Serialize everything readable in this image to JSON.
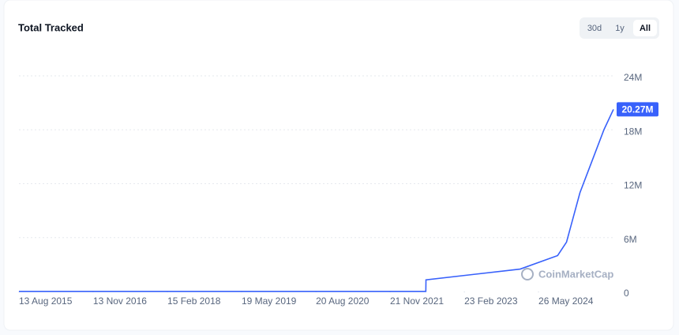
{
  "chart_data": {
    "type": "line",
    "title": "Total Tracked",
    "range_buttons": [
      "30d",
      "1y",
      "All"
    ],
    "active_button": 2,
    "watermark": "CoinMarketCap",
    "x": [
      "13 Aug 2015",
      "30 Jun 2022",
      "1 Jul 2022",
      "18 Apr 2023",
      "3 Feb 2024",
      "21 Sep 2024",
      "15 Nov 2024",
      "6 Feb 2025",
      "21 Apr 2025",
      "4 Jul 2025",
      "1 Sep 2025"
    ],
    "series": [
      {
        "name": "Total Tracked",
        "color": "#3861fb",
        "values": [
          0.02,
          0.02,
          1.3,
          1.9,
          2.5,
          4.0,
          5.5,
          11,
          14.5,
          18,
          20.27
        ],
        "value_labels": [
          null,
          null,
          null,
          null,
          null,
          null,
          null,
          null,
          null,
          null,
          "20.27M"
        ]
      }
    ],
    "xlim": [
      "13 Aug 2015",
      "1 Sep 2025"
    ],
    "xticks": [
      "13 Aug 2015",
      "13 Nov 2016",
      "15 Feb 2018",
      "19 May 2019",
      "20 Aug 2020",
      "21 Nov 2021",
      "23 Feb 2023",
      "26 May 2024"
    ],
    "ylim": [
      0,
      24
    ],
    "yticks": [
      0,
      {
        "value": 6,
        "label": "6M"
      },
      {
        "value": 12,
        "label": "12M"
      },
      {
        "value": 18,
        "label": "18M"
      },
      {
        "value": 24,
        "label": "24M"
      }
    ],
    "grid": true
  }
}
